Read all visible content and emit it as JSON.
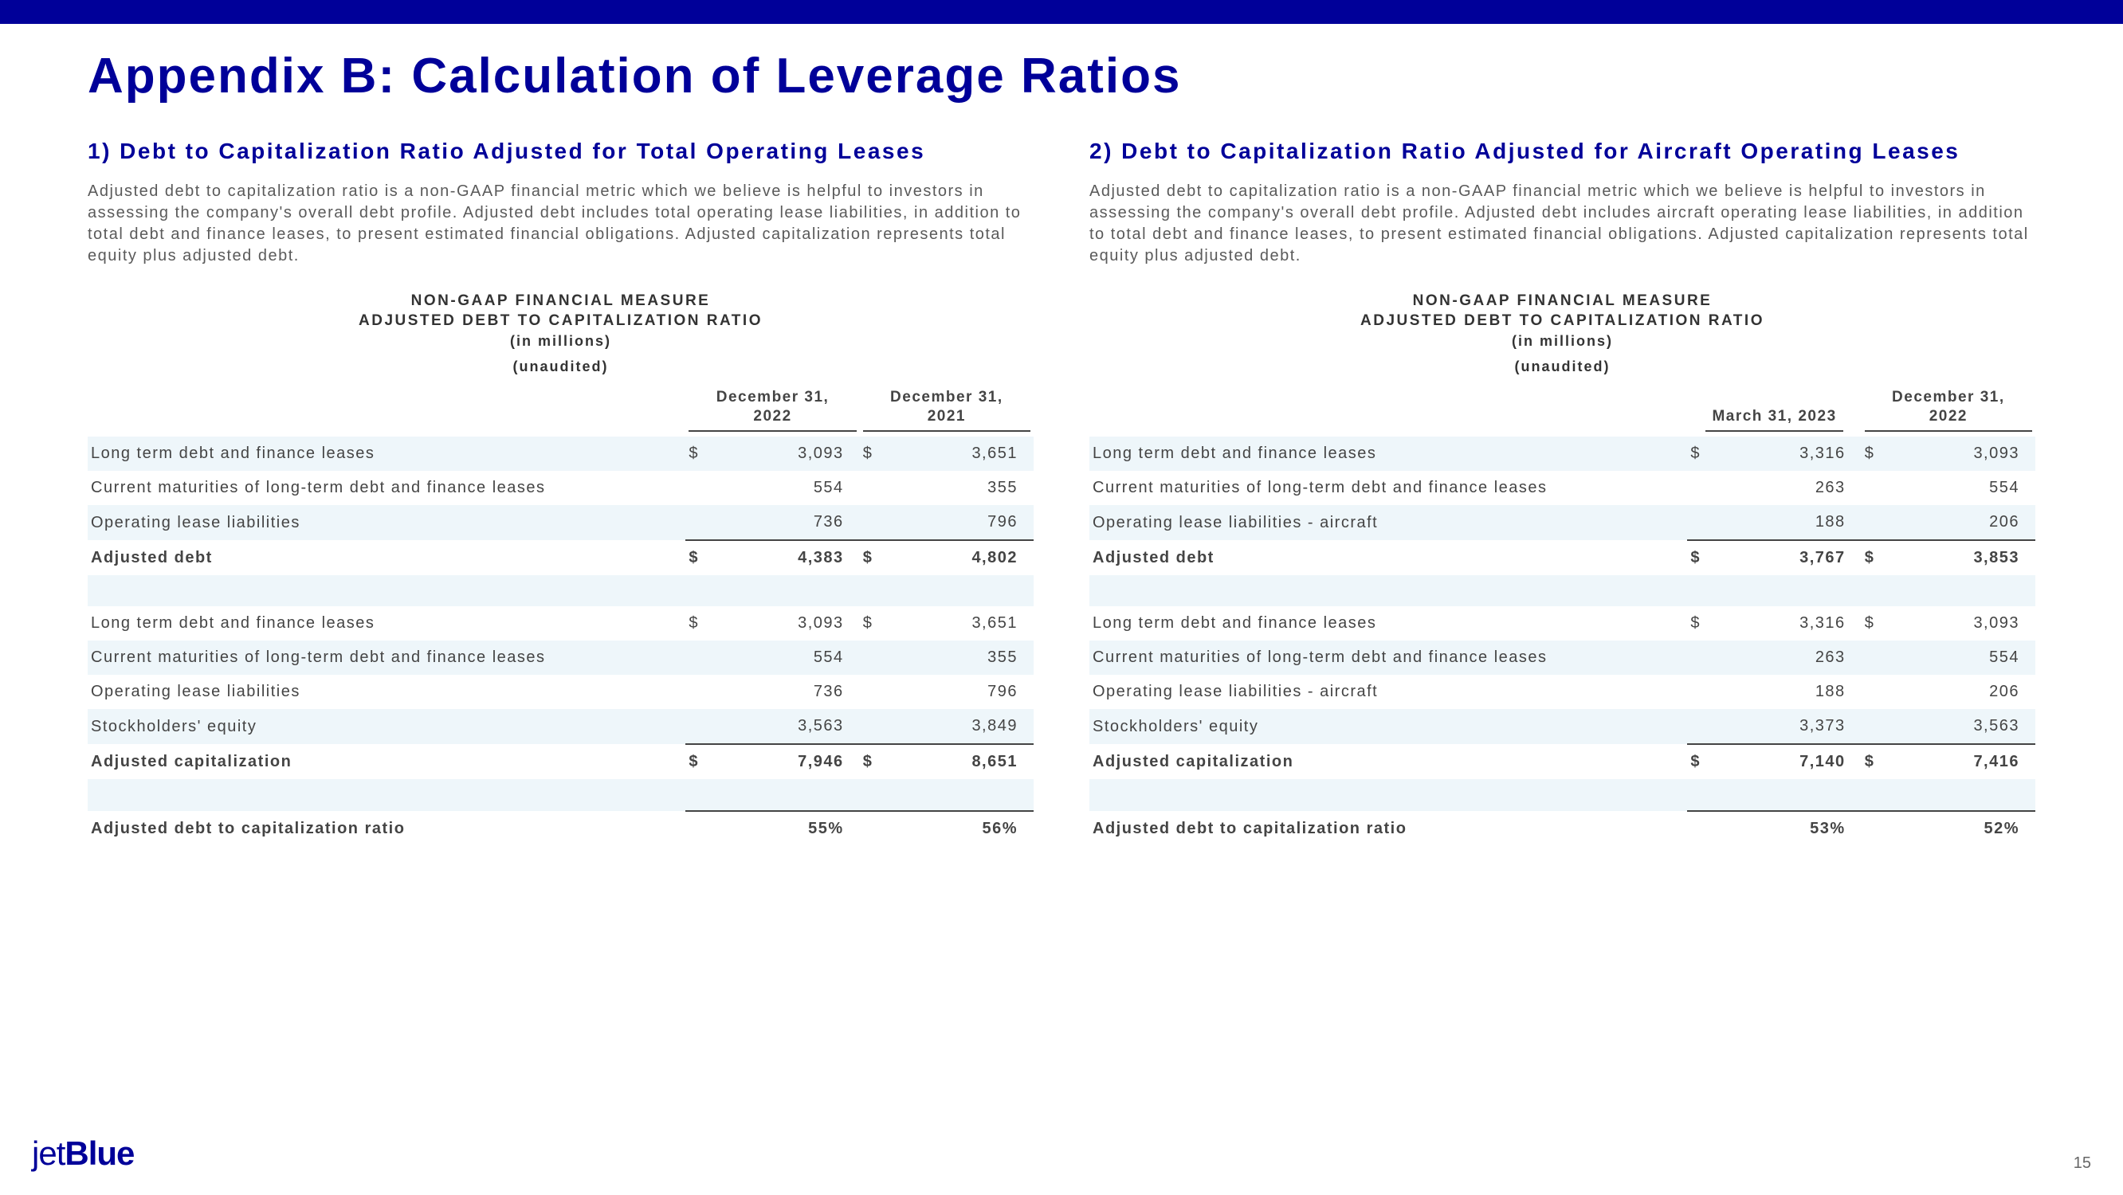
{
  "title": "Appendix B: Calculation of Leverage Ratios",
  "page_number": "15",
  "logo_part1": "jet",
  "logo_part2": "Blue",
  "left": {
    "subtitle": "1) Debt to Capitalization Ratio Adjusted for Total Operating Leases",
    "desc": "Adjusted debt to capitalization ratio is a non-GAAP financial metric which we believe is helpful to investors in assessing the company's overall debt profile. Adjusted debt includes total operating lease liabilities, in addition to total debt and finance leases, to present estimated financial obligations. Adjusted capitalization represents total equity plus adjusted debt.",
    "measure_line1": "NON-GAAP FINANCIAL MEASURE",
    "measure_line2": "ADJUSTED DEBT TO CAPITALIZATION RATIO",
    "measure_line3": "(in millions)",
    "measure_line4": "(unaudited)",
    "col1_header": "December 31, 2022",
    "col2_header": "December 31, 2021",
    "rows": [
      {
        "label": "Long term debt and finance leases",
        "s1": "$",
        "v1": "3,093",
        "s2": "$",
        "v2": "3,651",
        "shade": true
      },
      {
        "label": "Current maturities of long-term debt and finance leases",
        "s1": "",
        "v1": "554",
        "s2": "",
        "v2": "355",
        "shade": false
      },
      {
        "label": "Operating lease liabilities",
        "s1": "",
        "v1": "736",
        "s2": "",
        "v2": "796",
        "shade": true
      },
      {
        "label": "Adjusted debt",
        "s1": "$",
        "v1": "4,383",
        "s2": "$",
        "v2": "4,802",
        "shade": false,
        "bold": true,
        "topline": true
      },
      {
        "spacer": true,
        "shade": true
      },
      {
        "label": "Long term debt and finance leases",
        "s1": "$",
        "v1": "3,093",
        "s2": "$",
        "v2": "3,651",
        "shade": false
      },
      {
        "label": "Current maturities of long-term debt and finance leases",
        "s1": "",
        "v1": "554",
        "s2": "",
        "v2": "355",
        "shade": true
      },
      {
        "label": "Operating lease liabilities",
        "s1": "",
        "v1": "736",
        "s2": "",
        "v2": "796",
        "shade": false
      },
      {
        "label": "Stockholders' equity",
        "s1": "",
        "v1": "3,563",
        "s2": "",
        "v2": "3,849",
        "shade": true
      },
      {
        "label": "Adjusted capitalization",
        "s1": "$",
        "v1": "7,946",
        "s2": "$",
        "v2": "8,651",
        "shade": false,
        "bold": true,
        "topline": true
      },
      {
        "spacer": true,
        "shade": true
      },
      {
        "label": "Adjusted debt to capitalization ratio",
        "s1": "",
        "v1": "55%",
        "s2": "",
        "v2": "56%",
        "shade": false,
        "bold": true,
        "topline": true
      }
    ]
  },
  "right": {
    "subtitle": "2) Debt to Capitalization Ratio Adjusted for Aircraft Operating Leases",
    "desc": "Adjusted debt to capitalization ratio is a non-GAAP financial metric which we believe is helpful to investors in assessing the company's overall debt profile. Adjusted debt includes aircraft operating lease liabilities, in addition to total debt and finance leases, to present estimated financial obligations. Adjusted capitalization represents total equity plus adjusted debt.",
    "measure_line1": "NON-GAAP FINANCIAL MEASURE",
    "measure_line2": "ADJUSTED DEBT TO CAPITALIZATION RATIO",
    "measure_line3": "(in millions)",
    "measure_line4": "(unaudited)",
    "col1_header": "March 31, 2023",
    "col2_header": "December 31, 2022",
    "rows": [
      {
        "label": "Long term debt and finance leases",
        "s1": "$",
        "v1": "3,316",
        "s2": "$",
        "v2": "3,093",
        "shade": true
      },
      {
        "label": "Current maturities of long-term debt and finance leases",
        "s1": "",
        "v1": "263",
        "s2": "",
        "v2": "554",
        "shade": false
      },
      {
        "label": "Operating lease liabilities - aircraft",
        "s1": "",
        "v1": "188",
        "s2": "",
        "v2": "206",
        "shade": true
      },
      {
        "label": "Adjusted debt",
        "s1": "$",
        "v1": "3,767",
        "s2": "$",
        "v2": "3,853",
        "shade": false,
        "bold": true,
        "topline": true
      },
      {
        "spacer": true,
        "shade": true
      },
      {
        "label": "Long term debt and finance leases",
        "s1": "$",
        "v1": "3,316",
        "s2": "$",
        "v2": "3,093",
        "shade": false
      },
      {
        "label": "Current maturities of long-term debt and finance leases",
        "s1": "",
        "v1": "263",
        "s2": "",
        "v2": "554",
        "shade": true
      },
      {
        "label": "Operating lease liabilities - aircraft",
        "s1": "",
        "v1": "188",
        "s2": "",
        "v2": "206",
        "shade": false
      },
      {
        "label": "Stockholders' equity",
        "s1": "",
        "v1": "3,373",
        "s2": "",
        "v2": "3,563",
        "shade": true
      },
      {
        "label": "Adjusted capitalization",
        "s1": "$",
        "v1": "7,140",
        "s2": "$",
        "v2": "7,416",
        "shade": false,
        "bold": true,
        "topline": true
      },
      {
        "spacer": true,
        "shade": true
      },
      {
        "label": "Adjusted debt to capitalization ratio",
        "s1": "",
        "v1": "53%",
        "s2": "",
        "v2": "52%",
        "shade": false,
        "bold": true,
        "topline": true
      }
    ]
  }
}
